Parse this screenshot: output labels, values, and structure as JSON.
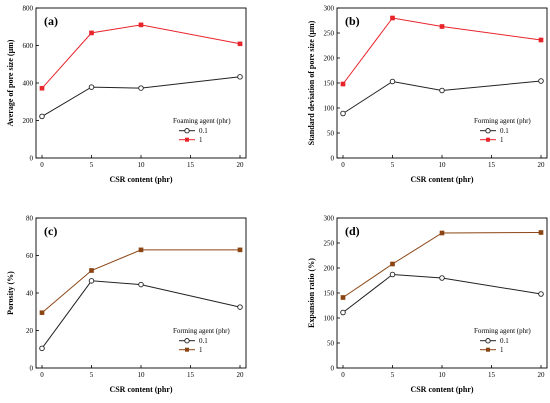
{
  "chart_data": [
    {
      "type": "line",
      "panel_label": "(a)",
      "title": "",
      "xlabel": "CSR content (phr)",
      "ylabel": "Average of pore size (μm)",
      "xlim": [
        0,
        20
      ],
      "ylim": [
        0,
        800
      ],
      "xticks": [
        "0",
        "5",
        "10",
        "15",
        "20"
      ],
      "yticks": [
        "0",
        "200",
        "400",
        "600",
        "800"
      ],
      "x": [
        0,
        5,
        10,
        20
      ],
      "legend_title": "Foaming agent (phr)",
      "legend_position": "bottom-right",
      "series": [
        {
          "name": "0.1",
          "values": [
            222,
            378,
            373,
            433
          ],
          "color": "#222222",
          "marker": "open-circle"
        },
        {
          "name": "1",
          "values": [
            372,
            667,
            710,
            609
          ],
          "color": "#e8242b",
          "marker": "filled-square"
        }
      ]
    },
    {
      "type": "line",
      "panel_label": "(b)",
      "title": "",
      "xlabel": "CSR content (phr)",
      "ylabel": "Standard deviation of pore size (μm)",
      "xlim": [
        0,
        20
      ],
      "ylim": [
        0,
        300
      ],
      "xticks": [
        "0",
        "5",
        "10",
        "15",
        "20"
      ],
      "yticks": [
        "0",
        "50",
        "100",
        "150",
        "200",
        "250",
        "300"
      ],
      "x": [
        0,
        5,
        10,
        20
      ],
      "legend_title": "Forming agent (phr)",
      "legend_position": "bottom-right",
      "series": [
        {
          "name": "0.1",
          "values": [
            89,
            153,
            135,
            154
          ],
          "color": "#222222",
          "marker": "open-circle"
        },
        {
          "name": "1",
          "values": [
            148,
            280,
            263,
            236
          ],
          "color": "#e8242b",
          "marker": "filled-square"
        }
      ]
    },
    {
      "type": "line",
      "panel_label": "(c)",
      "title": "",
      "xlabel": "CSR content (phr)",
      "ylabel": "Porosity (%)",
      "xlim": [
        0,
        20
      ],
      "ylim": [
        0,
        80
      ],
      "xticks": [
        "0",
        "5",
        "10",
        "15",
        "20"
      ],
      "yticks": [
        "0",
        "20",
        "40",
        "60",
        "80"
      ],
      "x": [
        0,
        5,
        10,
        20
      ],
      "legend_title": "Forming agent (phr)",
      "legend_position": "bottom-right",
      "series": [
        {
          "name": "0.1",
          "values": [
            10.5,
            46.5,
            44.5,
            32.5
          ],
          "color": "#222222",
          "marker": "open-circle"
        },
        {
          "name": "1",
          "values": [
            29.5,
            52,
            63,
            63
          ],
          "color": "#8b4513",
          "marker": "filled-square"
        }
      ]
    },
    {
      "type": "line",
      "panel_label": "(d)",
      "title": "",
      "xlabel": "CSR content (phr)",
      "ylabel": "Expansion ratio (%)",
      "xlim": [
        0,
        20
      ],
      "ylim": [
        0,
        300
      ],
      "xticks": [
        "0",
        "5",
        "10",
        "15",
        "20"
      ],
      "yticks": [
        "0",
        "50",
        "100",
        "150",
        "200",
        "250",
        "300"
      ],
      "x": [
        0,
        5,
        10,
        20
      ],
      "legend_title": "Forming agent (phr)",
      "legend_position": "bottom-right",
      "series": [
        {
          "name": "0.1",
          "values": [
            111,
            187,
            180,
            148
          ],
          "color": "#222222",
          "marker": "open-circle"
        },
        {
          "name": "1",
          "values": [
            141,
            208,
            270,
            271
          ],
          "color": "#8b4513",
          "marker": "filled-square"
        }
      ]
    }
  ]
}
